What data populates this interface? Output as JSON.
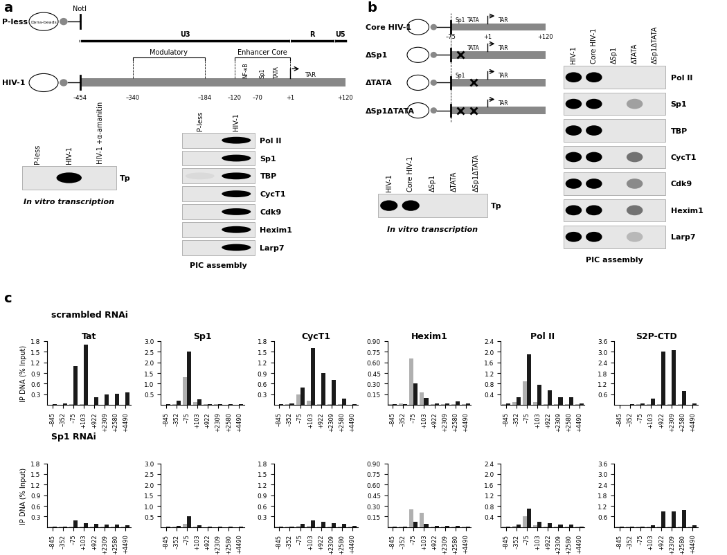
{
  "panel_a": {
    "label": "a",
    "diagram": {
      "span": [
        -454,
        120
      ],
      "beads": "Dyna-beads",
      "site": "NotI",
      "constructs": [
        "P-less",
        "HIV-1"
      ],
      "regions": [
        {
          "name": "U3",
          "from": -454,
          "to": 1
        },
        {
          "name": "R",
          "from": 1,
          "to": 97
        },
        {
          "name": "U5",
          "from": 97,
          "to": 120
        }
      ],
      "subregions": [
        {
          "name": "Modulatory",
          "from": -340,
          "to": -184
        },
        {
          "name": "Enhancer Core",
          "from": -120,
          "to": 1
        }
      ],
      "features": [
        {
          "name": "NF-κB",
          "at": -95
        },
        {
          "name": "Sp1",
          "at": -60
        },
        {
          "name": "TATA",
          "at": -28
        }
      ],
      "start": {
        "name": "TAR",
        "at": 1
      },
      "positions": [
        {
          "value": -454,
          "label": "–454"
        },
        {
          "value": -340,
          "label": "–340"
        },
        {
          "value": -184,
          "label": "–184"
        },
        {
          "value": -120,
          "label": "–120"
        },
        {
          "value": -70,
          "label": "–70"
        },
        {
          "value": 1,
          "label": "+1"
        },
        {
          "value": 120,
          "label": "+120"
        }
      ]
    },
    "transcription": {
      "lanes": [
        "P-less",
        "HIV-1",
        "HIV-1 +α-amanitin"
      ],
      "rows": [
        {
          "name": "Tp",
          "signal": [
            0,
            1,
            0
          ]
        }
      ],
      "caption": "In vitro transcription"
    },
    "pic": {
      "lanes": [
        "P-less",
        "HIV-1"
      ],
      "rows": [
        {
          "name": "Pol II",
          "signal": [
            0,
            1
          ]
        },
        {
          "name": "Sp1",
          "signal": [
            0,
            1
          ]
        },
        {
          "name": "TBP",
          "signal": [
            0.05,
            1
          ]
        },
        {
          "name": "CycT1",
          "signal": [
            0,
            1
          ]
        },
        {
          "name": "Cdk9",
          "signal": [
            0,
            1
          ]
        },
        {
          "name": "Hexim1",
          "signal": [
            0,
            1
          ]
        },
        {
          "name": "Larp7",
          "signal": [
            0,
            1
          ]
        }
      ],
      "caption": "PIC assembly"
    }
  },
  "panel_b": {
    "label": "b",
    "diagram": {
      "span": [
        -75,
        120
      ],
      "features": [
        {
          "name": "Sp1",
          "at": -55
        },
        {
          "name": "TATA",
          "at": -28
        }
      ],
      "start": {
        "name": "TAR",
        "at": 1
      },
      "positions": [
        {
          "value": -75,
          "label": "–75"
        },
        {
          "value": 1,
          "label": "+1"
        },
        {
          "value": 120,
          "label": "+120"
        }
      ],
      "constructs": [
        {
          "name": "Core HIV-1",
          "deleted": []
        },
        {
          "name": "ΔSp1",
          "deleted": [
            "Sp1"
          ]
        },
        {
          "name": "ΔTATA",
          "deleted": [
            "TATA"
          ]
        },
        {
          "name": "ΔSp1ΔTATA",
          "deleted": [
            "Sp1",
            "TATA"
          ]
        }
      ]
    },
    "transcription": {
      "lanes": [
        "HIV-1",
        "Core HIV-1",
        "ΔSp1",
        "ΔTATA",
        "ΔSp1ΔTATA"
      ],
      "rows": [
        {
          "name": "Tp",
          "signal": [
            1,
            1,
            0,
            0,
            0
          ]
        }
      ],
      "caption": "In vitro transcription"
    },
    "pic": {
      "lanes": [
        "HIV-1",
        "Core HIV-1",
        "ΔSp1",
        "ΔTATA",
        "ΔSp1ΔTATA"
      ],
      "rows": [
        {
          "name": "Pol II",
          "signal": [
            1,
            1,
            0,
            0,
            0
          ]
        },
        {
          "name": "Sp1",
          "signal": [
            1,
            1,
            0,
            0.3,
            0
          ]
        },
        {
          "name": "TBP",
          "signal": [
            1,
            1,
            0,
            0,
            0
          ]
        },
        {
          "name": "CycT1",
          "signal": [
            1,
            1,
            0,
            0.5,
            0
          ]
        },
        {
          "name": "Cdk9",
          "signal": [
            1,
            1,
            0,
            0.4,
            0
          ]
        },
        {
          "name": "Hexim1",
          "signal": [
            1,
            1,
            0,
            0.5,
            0
          ]
        },
        {
          "name": "Larp7",
          "signal": [
            1,
            1,
            0,
            0.2,
            0
          ]
        }
      ],
      "caption": "PIC assembly"
    }
  },
  "panel_c": {
    "label": "c",
    "rows": [
      "scrambled RNAi",
      "Sp1 RNAi"
    ]
  },
  "chart_data": [
    {
      "type": "bar",
      "title": "Tat",
      "y_label": "IP DNA (% Input)",
      "categories": [
        "–845",
        "–352",
        "–75",
        "+103",
        "+922",
        "+2309",
        "+2580",
        "+4490"
      ],
      "series": [
        {
          "color": "#b0b0b0",
          "values": [
            0.01,
            0.01,
            0.02,
            0.02,
            0.01,
            0.01,
            0.01,
            0.01
          ]
        },
        {
          "color": "#1a1a1a",
          "values": [
            0.02,
            0.05,
            1.1,
            1.7,
            0.22,
            0.3,
            0.32,
            0.35
          ]
        }
      ],
      "ylim": [
        0,
        1.8
      ],
      "yticks": [
        0.3,
        0.6,
        0.9,
        1.2,
        1.5,
        1.8
      ]
    },
    {
      "type": "bar",
      "title": "Sp1",
      "categories": [
        "–845",
        "–352",
        "–75",
        "+103",
        "+922",
        "+2309",
        "+2580",
        "+4490"
      ],
      "series": [
        {
          "color": "#b0b0b0",
          "values": [
            0.02,
            0.05,
            1.3,
            0.15,
            0.03,
            0.03,
            0.02,
            0.02
          ]
        },
        {
          "color": "#1a1a1a",
          "values": [
            0.03,
            0.2,
            2.5,
            0.25,
            0.05,
            0.05,
            0.04,
            0.03
          ]
        }
      ],
      "ylim": [
        0,
        3
      ],
      "yticks": [
        0.5,
        {
          "value": 1,
          "label": "1.0"
        },
        1.5,
        {
          "value": 2,
          "label": "2.0"
        },
        2.5,
        {
          "value": 3,
          "label": "3.0"
        }
      ]
    },
    {
      "type": "bar",
      "title": "CycT1",
      "categories": [
        "–845",
        "–352",
        "–75",
        "+103",
        "+922",
        "+2309",
        "+2580",
        "+4490"
      ],
      "series": [
        {
          "color": "#b0b0b0",
          "values": [
            0.01,
            0.02,
            0.3,
            0.12,
            0.02,
            0.02,
            0.02,
            0.01
          ]
        },
        {
          "color": "#1a1a1a",
          "values": [
            0.02,
            0.05,
            0.5,
            1.6,
            0.9,
            0.7,
            0.18,
            0.03
          ]
        }
      ],
      "ylim": [
        0,
        1.8
      ],
      "yticks": [
        0.3,
        0.6,
        0.9,
        1.2,
        1.5,
        1.8
      ]
    },
    {
      "type": "bar",
      "title": "Hexim1",
      "categories": [
        "–845",
        "–352",
        "–75",
        "+103",
        "+922",
        "+2309",
        "+2580",
        "+4490"
      ],
      "series": [
        {
          "color": "#b0b0b0",
          "values": [
            0.01,
            0.02,
            0.65,
            0.18,
            0.01,
            0.01,
            0.01,
            0.01
          ]
        },
        {
          "color": "#1a1a1a",
          "values": [
            0.01,
            0.01,
            0.3,
            0.1,
            0.02,
            0.02,
            0.05,
            0.02
          ]
        }
      ],
      "ylim": [
        0,
        0.9
      ],
      "yticks": [
        0.15,
        {
          "value": 0.3,
          "label": "0.30"
        },
        0.45,
        {
          "value": 0.6,
          "label": "0.60"
        },
        0.75,
        {
          "value": 0.9,
          "label": "0.90"
        }
      ]
    },
    {
      "type": "bar",
      "title": "Pol II",
      "categories": [
        "–845",
        "–352",
        "–75",
        "+103",
        "+922",
        "+2309",
        "+2580",
        "+4490"
      ],
      "series": [
        {
          "color": "#b0b0b0",
          "values": [
            0.03,
            0.1,
            0.9,
            0.1,
            0.03,
            0.03,
            0.03,
            0.02
          ]
        },
        {
          "color": "#1a1a1a",
          "values": [
            0.05,
            0.3,
            1.9,
            0.75,
            0.55,
            0.3,
            0.3,
            0.05
          ]
        }
      ],
      "ylim": [
        0,
        2.4
      ],
      "yticks": [
        0.4,
        0.8,
        1.2,
        1.6,
        {
          "value": 2,
          "label": "2.0"
        },
        2.4
      ]
    },
    {
      "type": "bar",
      "title": "S2P-CTD",
      "categories": [
        "–845",
        "–352",
        "–75",
        "+103",
        "+922",
        "+2309",
        "+2580",
        "+4490"
      ],
      "series": [
        {
          "color": "#b0b0b0",
          "values": [
            0.02,
            0.02,
            0.03,
            0.05,
            0.03,
            0.03,
            0.03,
            0.02
          ]
        },
        {
          "color": "#1a1a1a",
          "values": [
            0.02,
            0.05,
            0.1,
            0.35,
            3.0,
            3.1,
            0.8,
            0.1
          ]
        }
      ],
      "ylim": [
        0,
        3.6
      ],
      "yticks": [
        0.6,
        1.2,
        1.8,
        2.4,
        {
          "value": 3,
          "label": "3.0"
        },
        3.6
      ]
    },
    {
      "type": "bar",
      "y_label": "IP DNA (% Input)",
      "categories": [
        "–845",
        "–352",
        "–75",
        "+103",
        "+922",
        "+2309",
        "+2580",
        "+4490"
      ],
      "series": [
        {
          "color": "#b0b0b0",
          "values": [
            0.01,
            0.01,
            0.01,
            0.01,
            0.01,
            0.01,
            0.01,
            0.01
          ]
        },
        {
          "color": "#1a1a1a",
          "values": [
            0.01,
            0.02,
            0.2,
            0.12,
            0.1,
            0.08,
            0.08,
            0.05
          ]
        }
      ],
      "ylim": [
        0,
        1.8
      ],
      "yticks": [
        0.3,
        0.6,
        0.9,
        1.2,
        1.5,
        1.8
      ]
    },
    {
      "type": "bar",
      "categories": [
        "–845",
        "–352",
        "–75",
        "+103",
        "+922",
        "+2309",
        "+2580",
        "+4490"
      ],
      "series": [
        {
          "color": "#b0b0b0",
          "values": [
            0.01,
            0.02,
            0.15,
            0.03,
            0.01,
            0.01,
            0.01,
            0.01
          ]
        },
        {
          "color": "#1a1a1a",
          "values": [
            0.02,
            0.05,
            0.5,
            0.08,
            0.03,
            0.03,
            0.03,
            0.02
          ]
        }
      ],
      "ylim": [
        0,
        3
      ],
      "yticks": [
        0.5,
        {
          "value": 1,
          "label": "1.0"
        },
        1.5,
        {
          "value": 2,
          "label": "2.0"
        },
        2.5,
        {
          "value": 3,
          "label": "3.0"
        }
      ]
    },
    {
      "type": "bar",
      "categories": [
        "–845",
        "–352",
        "–75",
        "+103",
        "+922",
        "+2309",
        "+2580",
        "+4490"
      ],
      "series": [
        {
          "color": "#b0b0b0",
          "values": [
            0.01,
            0.01,
            0.03,
            0.03,
            0.02,
            0.02,
            0.01,
            0.01
          ]
        },
        {
          "color": "#1a1a1a",
          "values": [
            0.01,
            0.02,
            0.1,
            0.2,
            0.15,
            0.12,
            0.1,
            0.03
          ]
        }
      ],
      "ylim": [
        0,
        1.8
      ],
      "yticks": [
        0.3,
        0.6,
        0.9,
        1.2,
        1.5,
        1.8
      ]
    },
    {
      "type": "bar",
      "categories": [
        "–845",
        "–352",
        "–75",
        "+103",
        "+922",
        "+2309",
        "+2580",
        "+4490"
      ],
      "series": [
        {
          "color": "#b0b0b0",
          "values": [
            0.01,
            0.01,
            0.25,
            0.2,
            0.01,
            0.01,
            0.01,
            0.01
          ]
        },
        {
          "color": "#1a1a1a",
          "values": [
            0.01,
            0.01,
            0.08,
            0.05,
            0.02,
            0.02,
            0.02,
            0.01
          ]
        }
      ],
      "ylim": [
        0,
        0.9
      ],
      "yticks": [
        0.15,
        {
          "value": 0.3,
          "label": "0.30"
        },
        0.45,
        {
          "value": 0.6,
          "label": "0.60"
        },
        0.75,
        {
          "value": 0.9,
          "label": "0.90"
        }
      ]
    },
    {
      "type": "bar",
      "categories": [
        "–845",
        "–352",
        "–75",
        "+103",
        "+922",
        "+2309",
        "+2580",
        "+4490"
      ],
      "series": [
        {
          "color": "#b0b0b0",
          "values": [
            0.02,
            0.05,
            0.4,
            0.08,
            0.03,
            0.03,
            0.02,
            0.02
          ]
        },
        {
          "color": "#1a1a1a",
          "values": [
            0.03,
            0.1,
            0.7,
            0.2,
            0.15,
            0.1,
            0.1,
            0.03
          ]
        }
      ],
      "ylim": [
        0,
        2.4
      ],
      "yticks": [
        0.4,
        0.8,
        1.2,
        1.6,
        {
          "value": 2,
          "label": "2.0"
        },
        2.4
      ]
    },
    {
      "type": "bar",
      "categories": [
        "–845",
        "–352",
        "–75",
        "+103",
        "+922",
        "+2309",
        "+2580",
        "+4490"
      ],
      "series": [
        {
          "color": "#b0b0b0",
          "values": [
            0.02,
            0.02,
            0.02,
            0.03,
            0.03,
            0.03,
            0.03,
            0.02
          ]
        },
        {
          "color": "#1a1a1a",
          "values": [
            0.02,
            0.03,
            0.05,
            0.1,
            0.9,
            0.9,
            0.95,
            0.1
          ]
        }
      ],
      "ylim": [
        0,
        3.6
      ],
      "yticks": [
        0.6,
        1.2,
        1.8,
        2.4,
        {
          "value": 3,
          "label": "3.0"
        },
        3.6
      ]
    }
  ]
}
